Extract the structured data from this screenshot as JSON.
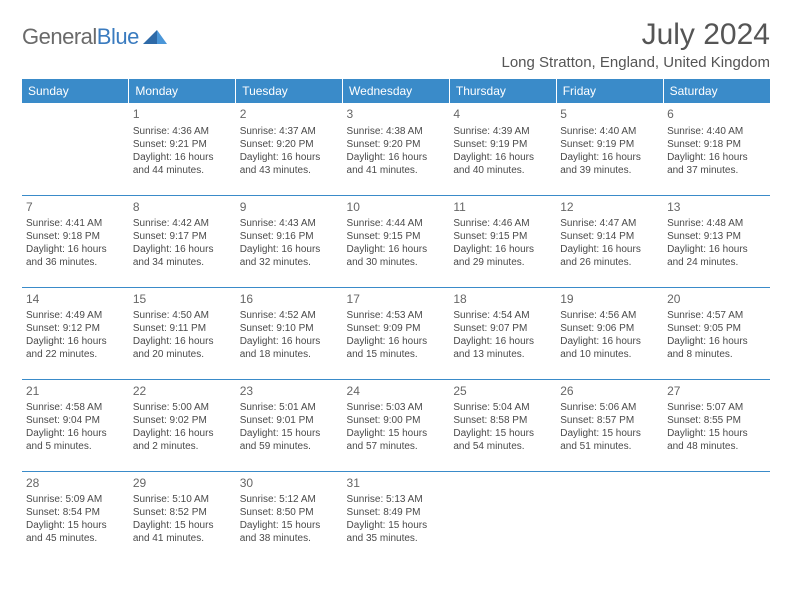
{
  "logo": {
    "text_a": "General",
    "text_b": "Blue"
  },
  "title": "July 2024",
  "location": "Long Stratton, England, United Kingdom",
  "colors": {
    "header_bg": "#3a8bc9",
    "header_text": "#ffffff",
    "cell_border": "#3a8bc9",
    "body_text": "#4a4a4a",
    "title_text": "#555555",
    "logo_gray": "#6a6a6a",
    "logo_blue": "#3a7bbf"
  },
  "typography": {
    "title_fontsize": 30,
    "location_fontsize": 15,
    "header_fontsize": 12,
    "daynum_fontsize": 12,
    "cell_fontsize": 10
  },
  "day_headers": [
    "Sunday",
    "Monday",
    "Tuesday",
    "Wednesday",
    "Thursday",
    "Friday",
    "Saturday"
  ],
  "weeks": [
    [
      null,
      {
        "n": "1",
        "sr": "Sunrise: 4:36 AM",
        "ss": "Sunset: 9:21 PM",
        "d1": "Daylight: 16 hours",
        "d2": "and 44 minutes."
      },
      {
        "n": "2",
        "sr": "Sunrise: 4:37 AM",
        "ss": "Sunset: 9:20 PM",
        "d1": "Daylight: 16 hours",
        "d2": "and 43 minutes."
      },
      {
        "n": "3",
        "sr": "Sunrise: 4:38 AM",
        "ss": "Sunset: 9:20 PM",
        "d1": "Daylight: 16 hours",
        "d2": "and 41 minutes."
      },
      {
        "n": "4",
        "sr": "Sunrise: 4:39 AM",
        "ss": "Sunset: 9:19 PM",
        "d1": "Daylight: 16 hours",
        "d2": "and 40 minutes."
      },
      {
        "n": "5",
        "sr": "Sunrise: 4:40 AM",
        "ss": "Sunset: 9:19 PM",
        "d1": "Daylight: 16 hours",
        "d2": "and 39 minutes."
      },
      {
        "n": "6",
        "sr": "Sunrise: 4:40 AM",
        "ss": "Sunset: 9:18 PM",
        "d1": "Daylight: 16 hours",
        "d2": "and 37 minutes."
      }
    ],
    [
      {
        "n": "7",
        "sr": "Sunrise: 4:41 AM",
        "ss": "Sunset: 9:18 PM",
        "d1": "Daylight: 16 hours",
        "d2": "and 36 minutes."
      },
      {
        "n": "8",
        "sr": "Sunrise: 4:42 AM",
        "ss": "Sunset: 9:17 PM",
        "d1": "Daylight: 16 hours",
        "d2": "and 34 minutes."
      },
      {
        "n": "9",
        "sr": "Sunrise: 4:43 AM",
        "ss": "Sunset: 9:16 PM",
        "d1": "Daylight: 16 hours",
        "d2": "and 32 minutes."
      },
      {
        "n": "10",
        "sr": "Sunrise: 4:44 AM",
        "ss": "Sunset: 9:15 PM",
        "d1": "Daylight: 16 hours",
        "d2": "and 30 minutes."
      },
      {
        "n": "11",
        "sr": "Sunrise: 4:46 AM",
        "ss": "Sunset: 9:15 PM",
        "d1": "Daylight: 16 hours",
        "d2": "and 29 minutes."
      },
      {
        "n": "12",
        "sr": "Sunrise: 4:47 AM",
        "ss": "Sunset: 9:14 PM",
        "d1": "Daylight: 16 hours",
        "d2": "and 26 minutes."
      },
      {
        "n": "13",
        "sr": "Sunrise: 4:48 AM",
        "ss": "Sunset: 9:13 PM",
        "d1": "Daylight: 16 hours",
        "d2": "and 24 minutes."
      }
    ],
    [
      {
        "n": "14",
        "sr": "Sunrise: 4:49 AM",
        "ss": "Sunset: 9:12 PM",
        "d1": "Daylight: 16 hours",
        "d2": "and 22 minutes."
      },
      {
        "n": "15",
        "sr": "Sunrise: 4:50 AM",
        "ss": "Sunset: 9:11 PM",
        "d1": "Daylight: 16 hours",
        "d2": "and 20 minutes."
      },
      {
        "n": "16",
        "sr": "Sunrise: 4:52 AM",
        "ss": "Sunset: 9:10 PM",
        "d1": "Daylight: 16 hours",
        "d2": "and 18 minutes."
      },
      {
        "n": "17",
        "sr": "Sunrise: 4:53 AM",
        "ss": "Sunset: 9:09 PM",
        "d1": "Daylight: 16 hours",
        "d2": "and 15 minutes."
      },
      {
        "n": "18",
        "sr": "Sunrise: 4:54 AM",
        "ss": "Sunset: 9:07 PM",
        "d1": "Daylight: 16 hours",
        "d2": "and 13 minutes."
      },
      {
        "n": "19",
        "sr": "Sunrise: 4:56 AM",
        "ss": "Sunset: 9:06 PM",
        "d1": "Daylight: 16 hours",
        "d2": "and 10 minutes."
      },
      {
        "n": "20",
        "sr": "Sunrise: 4:57 AM",
        "ss": "Sunset: 9:05 PM",
        "d1": "Daylight: 16 hours",
        "d2": "and 8 minutes."
      }
    ],
    [
      {
        "n": "21",
        "sr": "Sunrise: 4:58 AM",
        "ss": "Sunset: 9:04 PM",
        "d1": "Daylight: 16 hours",
        "d2": "and 5 minutes."
      },
      {
        "n": "22",
        "sr": "Sunrise: 5:00 AM",
        "ss": "Sunset: 9:02 PM",
        "d1": "Daylight: 16 hours",
        "d2": "and 2 minutes."
      },
      {
        "n": "23",
        "sr": "Sunrise: 5:01 AM",
        "ss": "Sunset: 9:01 PM",
        "d1": "Daylight: 15 hours",
        "d2": "and 59 minutes."
      },
      {
        "n": "24",
        "sr": "Sunrise: 5:03 AM",
        "ss": "Sunset: 9:00 PM",
        "d1": "Daylight: 15 hours",
        "d2": "and 57 minutes."
      },
      {
        "n": "25",
        "sr": "Sunrise: 5:04 AM",
        "ss": "Sunset: 8:58 PM",
        "d1": "Daylight: 15 hours",
        "d2": "and 54 minutes."
      },
      {
        "n": "26",
        "sr": "Sunrise: 5:06 AM",
        "ss": "Sunset: 8:57 PM",
        "d1": "Daylight: 15 hours",
        "d2": "and 51 minutes."
      },
      {
        "n": "27",
        "sr": "Sunrise: 5:07 AM",
        "ss": "Sunset: 8:55 PM",
        "d1": "Daylight: 15 hours",
        "d2": "and 48 minutes."
      }
    ],
    [
      {
        "n": "28",
        "sr": "Sunrise: 5:09 AM",
        "ss": "Sunset: 8:54 PM",
        "d1": "Daylight: 15 hours",
        "d2": "and 45 minutes."
      },
      {
        "n": "29",
        "sr": "Sunrise: 5:10 AM",
        "ss": "Sunset: 8:52 PM",
        "d1": "Daylight: 15 hours",
        "d2": "and 41 minutes."
      },
      {
        "n": "30",
        "sr": "Sunrise: 5:12 AM",
        "ss": "Sunset: 8:50 PM",
        "d1": "Daylight: 15 hours",
        "d2": "and 38 minutes."
      },
      {
        "n": "31",
        "sr": "Sunrise: 5:13 AM",
        "ss": "Sunset: 8:49 PM",
        "d1": "Daylight: 15 hours",
        "d2": "and 35 minutes."
      },
      null,
      null,
      null
    ]
  ]
}
